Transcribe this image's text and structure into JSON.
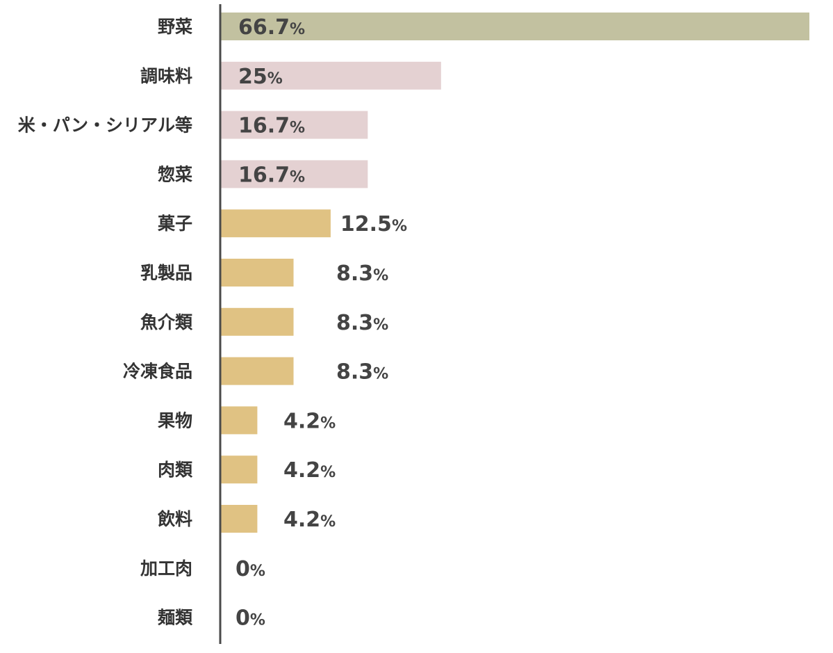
{
  "chart_data": {
    "type": "bar",
    "orientation": "horizontal",
    "title": "",
    "xlabel": "",
    "ylabel": "",
    "value_suffix": "%",
    "xlim": [
      0,
      66.7
    ],
    "grid": false,
    "categories": [
      "野菜",
      "調味料",
      "米・パン・シリアル等",
      "惣菜",
      "菓子",
      "乳製品",
      "魚介類",
      "冷凍食品",
      "果物",
      "肉類",
      "飲料",
      "加工肉",
      "麺類"
    ],
    "values": [
      66.7,
      25,
      16.7,
      16.7,
      12.5,
      8.3,
      8.3,
      8.3,
      4.2,
      4.2,
      4.2,
      0,
      0
    ],
    "value_labels": [
      "66.7",
      "25",
      "16.7",
      "16.7",
      "12.5",
      "8.3",
      "8.3",
      "8.3",
      "4.2",
      "4.2",
      "4.2",
      "0",
      "0"
    ],
    "bar_colors": [
      "#c2c1a0",
      "#e4d1d2",
      "#e4d1d2",
      "#e4d1d2",
      "#e0c283",
      "#e0c283",
      "#e0c283",
      "#e0c283",
      "#e0c283",
      "#e0c283",
      "#e0c283",
      "#e0c283",
      "#e0c283"
    ],
    "label_placement": [
      "inside",
      "inside",
      "inside",
      "inside",
      "outside",
      "outside",
      "outside",
      "outside",
      "outside",
      "outside",
      "outside",
      "outside",
      "outside"
    ],
    "axis_color": "#4a4a4a"
  }
}
